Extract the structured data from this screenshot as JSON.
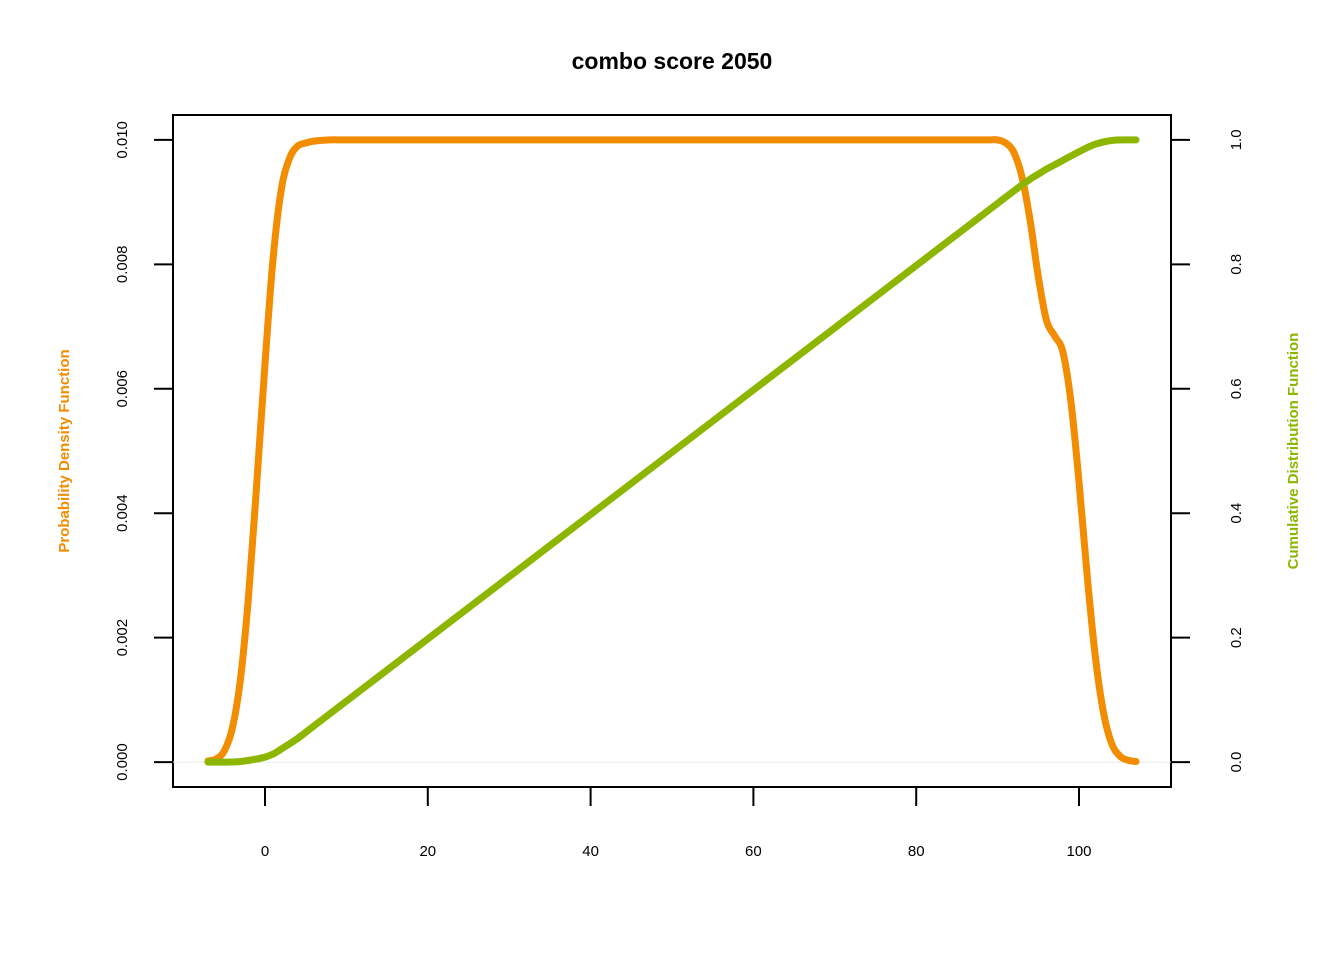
{
  "chart_data": {
    "type": "line",
    "title": "combo score 2050",
    "xlabel": "",
    "ylabel_left": "Probability Density Function",
    "ylabel_right": "Cumulative Distribution Function",
    "xlim": [
      -11.3,
      111.3
    ],
    "ylim_left": [
      -0.0004,
      0.0104
    ],
    "ylim_right": [
      -0.04,
      1.04
    ],
    "x_ticks": [
      0,
      20,
      40,
      60,
      80,
      100
    ],
    "y_left_ticks": [
      "0.000",
      "0.002",
      "0.004",
      "0.006",
      "0.008",
      "0.010"
    ],
    "y_right_ticks": [
      "0.0",
      "0.2",
      "0.4",
      "0.6",
      "0.8",
      "1.0"
    ],
    "grid": false,
    "legend": "none",
    "colors": {
      "pdf": "#F28C00",
      "cdf": "#8DB600"
    },
    "series": [
      {
        "axis": "left",
        "x": [
          -7,
          -6,
          -5,
          -4,
          -3,
          -2,
          -1,
          0,
          1,
          2,
          3,
          4,
          5,
          6,
          8,
          10,
          15,
          20,
          25,
          30,
          35,
          40,
          45,
          50,
          55,
          60,
          65,
          70,
          75,
          80,
          85,
          88,
          89,
          90,
          91,
          92,
          93,
          94,
          95,
          96,
          97,
          98,
          99,
          100,
          101,
          102,
          103,
          104,
          105,
          106,
          107
        ],
        "values": [
          2e-05,
          5e-05,
          0.00018,
          0.00055,
          0.00135,
          0.0027,
          0.0045,
          0.0064,
          0.0081,
          0.0092,
          0.0097,
          0.0099,
          0.00995,
          0.00998,
          0.01,
          0.01,
          0.01,
          0.01,
          0.01,
          0.01,
          0.01,
          0.01,
          0.01,
          0.01,
          0.01,
          0.01,
          0.01,
          0.01,
          0.01,
          0.01,
          0.01,
          0.01,
          0.01,
          0.01,
          0.00995,
          0.0098,
          0.0094,
          0.0087,
          0.0078,
          0.0071,
          0.00685,
          0.0066,
          0.0058,
          0.0045,
          0.003,
          0.0017,
          0.0008,
          0.0003,
          0.0001,
          3e-05,
          1e-05
        ]
      },
      {
        "axis": "right",
        "x": [
          -7,
          -5,
          -3,
          -1,
          0,
          1,
          2,
          4,
          6,
          10,
          20,
          30,
          40,
          50,
          60,
          70,
          80,
          85,
          88,
          90,
          92,
          94,
          95,
          96,
          97,
          98,
          100,
          102,
          104,
          106,
          107
        ],
        "values": [
          0.0,
          0.0,
          0.001,
          0.005,
          0.008,
          0.013,
          0.021,
          0.038,
          0.058,
          0.098,
          0.198,
          0.298,
          0.398,
          0.498,
          0.598,
          0.698,
          0.798,
          0.848,
          0.878,
          0.898,
          0.918,
          0.937,
          0.945,
          0.953,
          0.96,
          0.967,
          0.981,
          0.993,
          0.999,
          1.0,
          1.0
        ]
      }
    ]
  }
}
